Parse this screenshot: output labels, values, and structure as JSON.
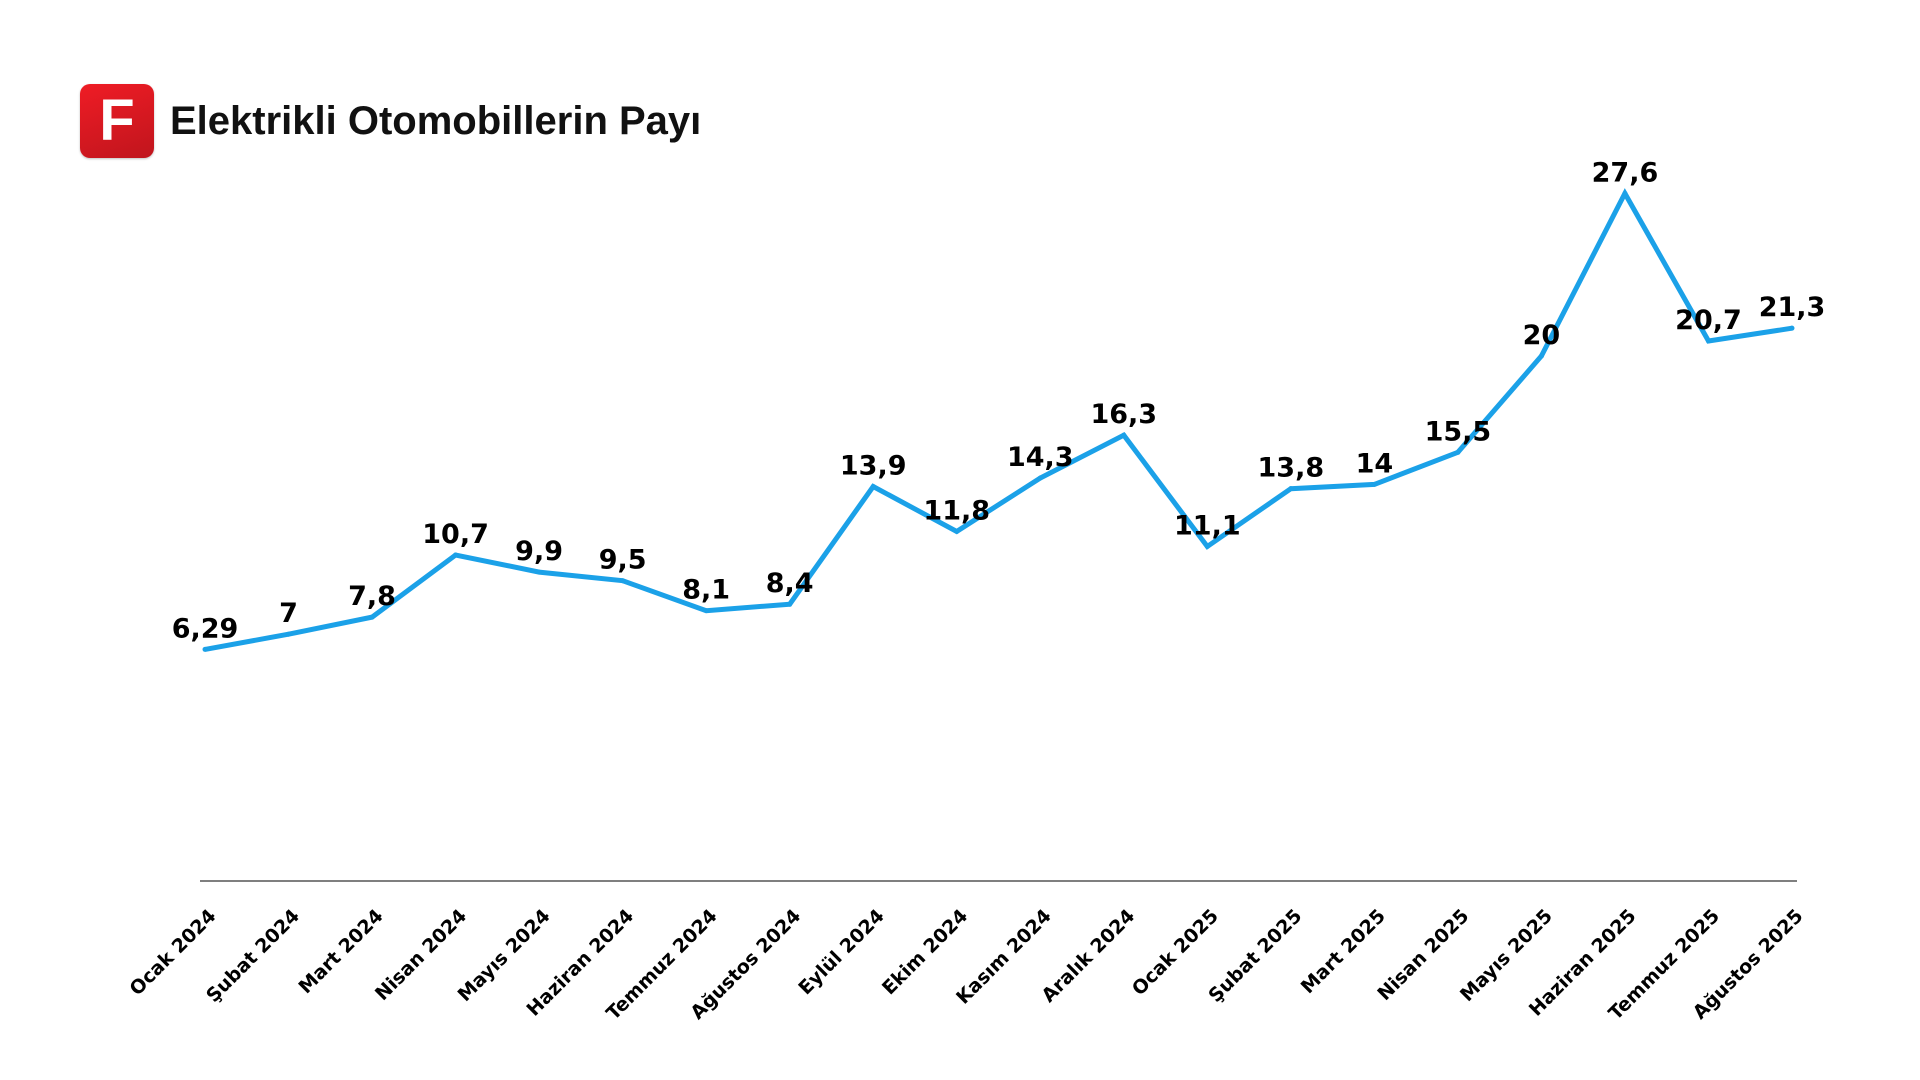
{
  "header": {
    "logo_letter": "F",
    "title": "Elektrikli Otomobillerin Payı"
  },
  "chart_data": {
    "type": "line",
    "title": "Elektrikli Otomobillerin Payı",
    "xlabel": "",
    "ylabel": "",
    "ylim": [
      0,
      30
    ],
    "grid": false,
    "legend": "none",
    "categories": [
      "Ocak 2024",
      "Şubat 2024",
      "Mart 2024",
      "Nisan 2024",
      "Mayıs 2024",
      "Haziran 2024",
      "Temmuz 2024",
      "Ağustos 2024",
      "Eylül 2024",
      "Ekim 2024",
      "Kasım 2024",
      "Aralık 2024",
      "Ocak 2025",
      "Şubat 2025",
      "Mart 2025",
      "Nisan 2025",
      "Mayıs 2025",
      "Haziran 2025",
      "Temmuz 2025",
      "Ağustos 2025"
    ],
    "values": [
      6.29,
      7,
      7.8,
      10.7,
      9.9,
      9.5,
      8.1,
      8.4,
      13.9,
      11.8,
      14.3,
      16.3,
      11.1,
      13.8,
      14,
      15.5,
      20,
      27.6,
      20.7,
      21.3
    ],
    "data_labels": [
      "6,29",
      "7",
      "7,8",
      "10,7",
      "9,9",
      "9,5",
      "8,1",
      "8,4",
      "13,9",
      "11,8",
      "14,3",
      "16,3",
      "11,1",
      "13,8",
      "14",
      "15,5",
      "20",
      "27,6",
      "20,7",
      "21,3"
    ],
    "line_color": "#1ba1e8",
    "axis_color": "#555555"
  }
}
